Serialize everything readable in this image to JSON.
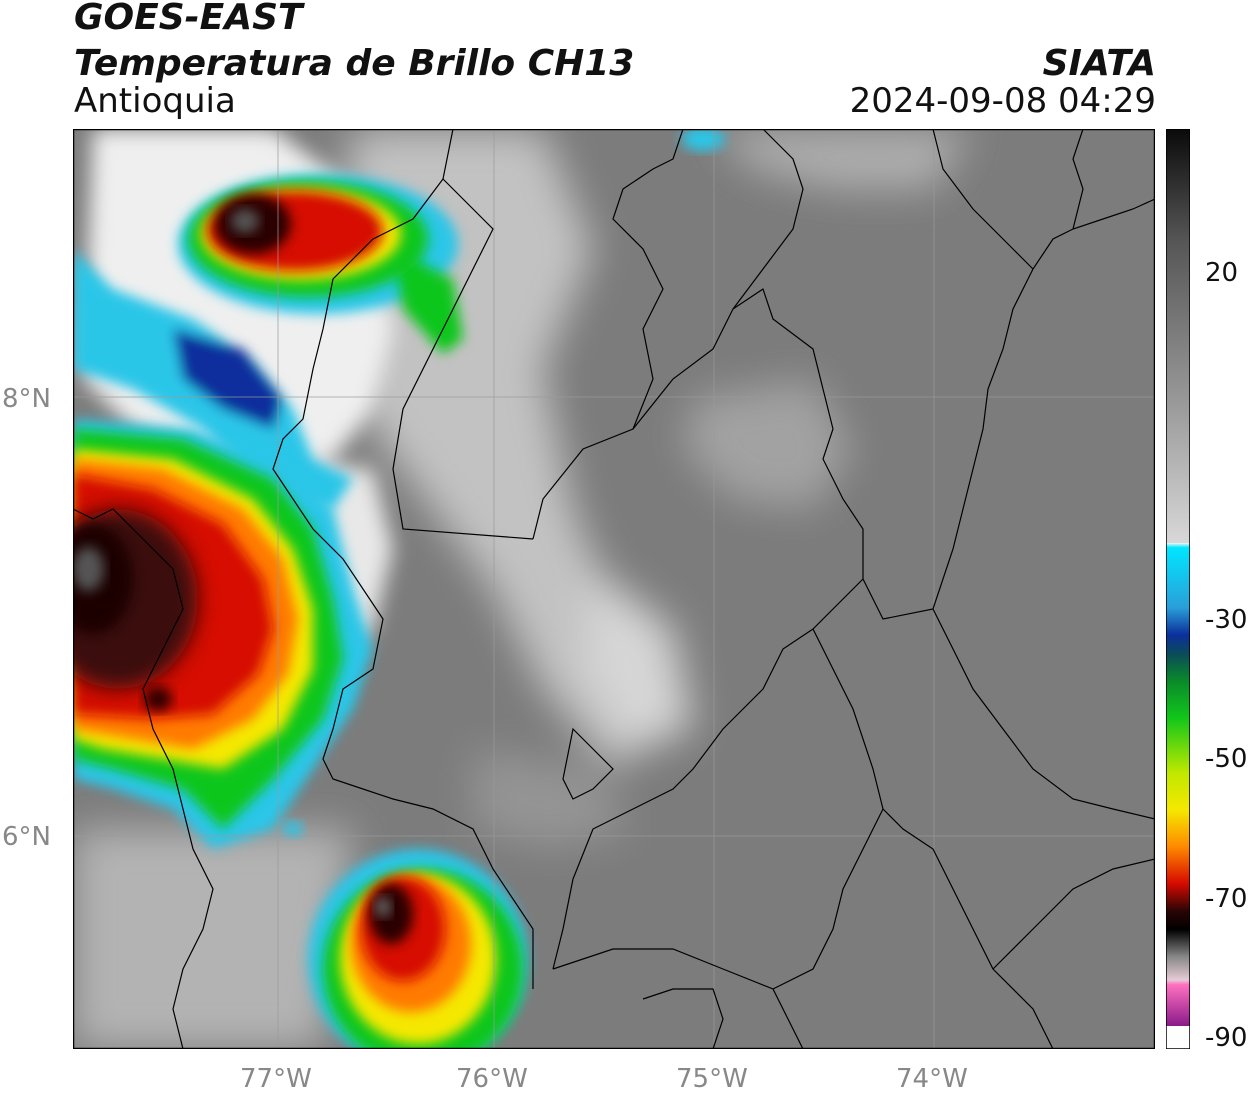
{
  "header": {
    "line1": "GOES-EAST",
    "line2": "Temperatura de Brillo CH13",
    "line3": "Antioquia",
    "source": "SIATA",
    "datetime": "2024-09-08 04:29"
  },
  "axes": {
    "lat_labels": [
      "8°N",
      "6°N"
    ],
    "lon_labels": [
      "77°W",
      "76°W",
      "75°W",
      "74°W"
    ]
  },
  "colorbar": {
    "ticks": [
      "20",
      "-30",
      "-50",
      "-70",
      "-90"
    ]
  },
  "colors": {
    "background": "#7a7a7a",
    "cloud_white": "#f2f2f2",
    "cyan": "#29c6e8",
    "blue": "#0b2f9c",
    "green": "#11c61a",
    "yellow": "#f5e800",
    "red": "#d60a00",
    "dark": "#190404",
    "magenta": "#cc44bb"
  }
}
